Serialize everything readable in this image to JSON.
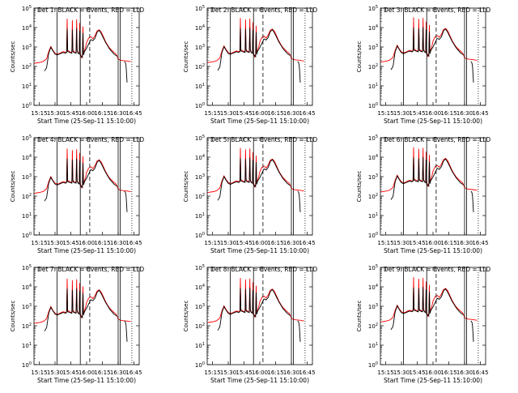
{
  "figure": {
    "start_time_label": "Start Time (25-Sep-11 15:10:00)",
    "ylabel": "Counts/sec",
    "x_tick_labels": [
      "15:15",
      "15:30",
      "15:45",
      "16:00",
      "16:15",
      "16:30",
      "16:45"
    ],
    "y_tick_exponents": [
      "0",
      "1",
      "2",
      "3",
      "4",
      "5"
    ],
    "colors": {
      "events": "#000000",
      "lld": "#ff0000",
      "axes": "#000000"
    }
  },
  "chart_data": [
    {
      "type": "line",
      "title": "Det 1: BLACK = Events, RED = LLD",
      "detector": 1
    },
    {
      "type": "line",
      "title": "Det 2: BLACK = Events, RED = LLD",
      "detector": 2
    },
    {
      "type": "line",
      "title": "Det 3: BLACK = Events, RED = LLD",
      "detector": 3
    },
    {
      "type": "line",
      "title": "Det 4: BLACK = Events, RED = LLD",
      "detector": 4
    },
    {
      "type": "line",
      "title": "Det 5: BLACK = Events, RED = LLD",
      "detector": 5
    },
    {
      "type": "line",
      "title": "Det 6: BLACK = Events, RED = LLD",
      "detector": 6
    },
    {
      "type": "line",
      "title": "Det 7: BLACK = Events, RED = LLD",
      "detector": 7
    },
    {
      "type": "line",
      "title": "Det 8: BLACK = Events, RED = LLD",
      "detector": 8
    },
    {
      "type": "line",
      "title": "Det 9: BLACK = Events, RED = LLD",
      "detector": 9
    }
  ],
  "shared": {
    "x_unit": "minutes after 15:10:00 UT",
    "x_range_min": [
      0,
      100
    ],
    "y_scale": "log",
    "y_range": [
      1,
      100000
    ],
    "vertical_markers_min": {
      "solid": [
        22,
        44,
        80,
        82
      ],
      "dashed": [
        53
      ],
      "dotted": [
        93
      ]
    },
    "lld": {
      "x": [
        0,
        3,
        6,
        9,
        12,
        14,
        16,
        18,
        20,
        22,
        24,
        26,
        28,
        30,
        31,
        31.5,
        32,
        33,
        35,
        36,
        36.5,
        37,
        38,
        39,
        40,
        40.5,
        41,
        42,
        43,
        43.5,
        44,
        45,
        46,
        46.5,
        47,
        48,
        49,
        50,
        52,
        54,
        56,
        58,
        60,
        62,
        64,
        66,
        68,
        70,
        72,
        74,
        76,
        77,
        78,
        79,
        80,
        82,
        84,
        86,
        88,
        90,
        92
      ],
      "y": [
        150,
        160,
        170,
        190,
        260,
        600,
        1100,
        700,
        500,
        450,
        480,
        550,
        600,
        550,
        600,
        30000,
        700,
        650,
        550,
        600,
        25000,
        700,
        600,
        550,
        600,
        28000,
        700,
        500,
        500,
        18000,
        500,
        300,
        400,
        12000,
        500,
        700,
        1000,
        1800,
        3000,
        3500,
        2800,
        4000,
        7000,
        8000,
        6000,
        3500,
        2000,
        1300,
        900,
        700,
        550,
        500,
        450,
        350,
        250,
        220,
        210,
        205,
        200,
        190,
        185
      ]
    },
    "events": {
      "x": [
        10,
        12,
        14,
        16,
        18,
        20,
        22,
        24,
        26,
        28,
        30,
        31,
        31.5,
        32,
        34,
        36,
        36.5,
        37,
        38,
        40,
        40.5,
        41,
        42,
        43,
        43.5,
        44,
        46,
        46.5,
        47,
        48,
        50,
        52,
        54,
        56,
        58,
        60,
        62,
        64,
        66,
        68,
        70,
        72,
        74,
        76,
        78,
        79
      ],
      "y": [
        60,
        90,
        500,
        1000,
        650,
        450,
        400,
        450,
        500,
        550,
        500,
        550,
        9000,
        600,
        550,
        500,
        8000,
        600,
        550,
        500,
        9500,
        600,
        500,
        450,
        7000,
        400,
        300,
        5500,
        400,
        600,
        900,
        1500,
        2500,
        2200,
        3000,
        6000,
        7500,
        5000,
        3000,
        1800,
        1200,
        800,
        600,
        450,
        380,
        350
      ],
      "tail_x": [
        86,
        87,
        87.5,
        88,
        88.5
      ],
      "tail_y": [
        180,
        150,
        100,
        40,
        15
      ]
    }
  }
}
